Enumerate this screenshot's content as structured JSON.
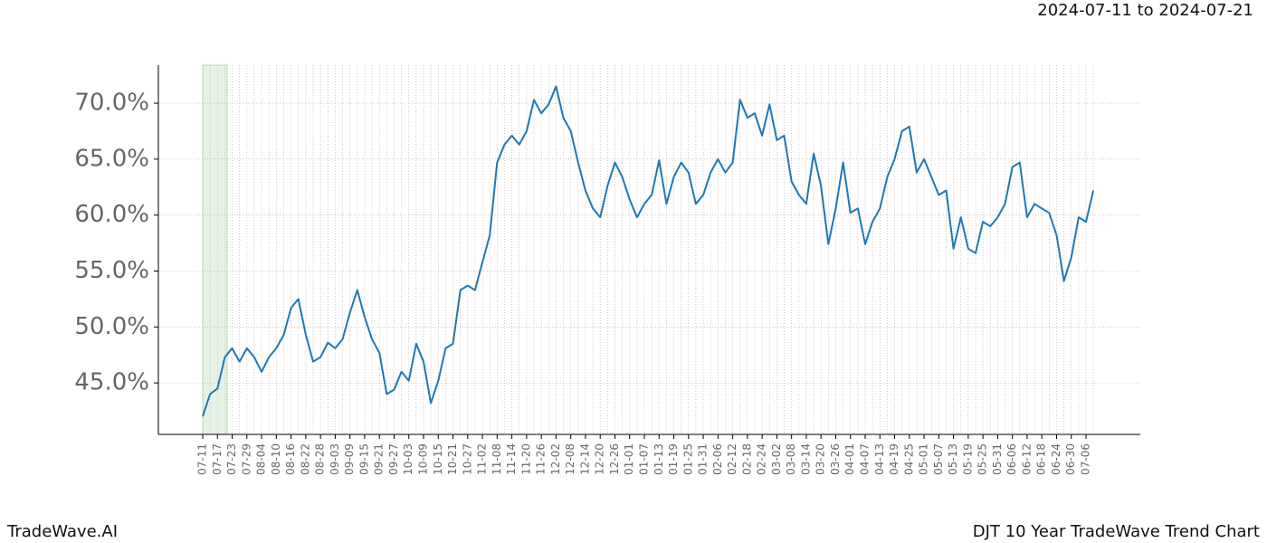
{
  "chart_data": {
    "type": "line",
    "subtitle": "2024-07-11 to 2024-07-21",
    "footer_left": "TradeWave.AI",
    "footer_right": "DJT 10 Year TradeWave Trend Chart",
    "categories": [
      "07-11",
      null,
      "07-17",
      null,
      "07-23",
      null,
      "07-29",
      null,
      "08-04",
      null,
      "08-10",
      null,
      "08-16",
      null,
      "08-22",
      null,
      "08-28",
      null,
      "09-03",
      null,
      "09-09",
      null,
      "09-15",
      null,
      "09-21",
      null,
      "09-27",
      null,
      "10-03",
      null,
      "10-09",
      null,
      "10-15",
      null,
      "10-21",
      null,
      "10-27",
      null,
      "11-02",
      null,
      "11-08",
      null,
      "11-14",
      null,
      "11-20",
      null,
      "11-26",
      null,
      "12-02",
      null,
      "12-08",
      null,
      "12-14",
      null,
      "12-20",
      null,
      "12-26",
      null,
      "01-01",
      null,
      "01-07",
      null,
      "01-13",
      null,
      "01-19",
      null,
      "01-25",
      null,
      "01-31",
      null,
      "02-06",
      null,
      "02-12",
      null,
      "02-18",
      null,
      "02-24",
      null,
      "03-02",
      null,
      "03-08",
      null,
      "03-14",
      null,
      "03-20",
      null,
      "03-26",
      null,
      "04-01",
      null,
      "04-07",
      null,
      "04-13",
      null,
      "04-19",
      null,
      "04-25",
      null,
      "05-01",
      null,
      "05-07",
      null,
      "05-13",
      null,
      "05-19",
      null,
      "05-25",
      null,
      "05-31",
      null,
      "06-06",
      null,
      "06-12",
      null,
      "06-18",
      null,
      "06-24",
      null,
      "06-30",
      null,
      "07-06",
      null
    ],
    "series": [
      {
        "color": "#1f77b4",
        "values": [
          42.0,
          44.0,
          44.5,
          47.3,
          48.1,
          46.9,
          48.1,
          47.3,
          46.0,
          47.3,
          48.1,
          49.3,
          51.7,
          52.5,
          49.3,
          46.9,
          47.3,
          48.6,
          48.1,
          48.9,
          51.3,
          53.3,
          50.9,
          48.9,
          47.7,
          44.0,
          44.4,
          46.0,
          45.2,
          48.5,
          46.9,
          43.2,
          45.2,
          48.1,
          48.5,
          53.3,
          53.7,
          53.3,
          55.8,
          58.2,
          64.7,
          66.3,
          67.1,
          66.3,
          67.5,
          70.3,
          69.1,
          69.9,
          71.5,
          68.7,
          67.5,
          64.7,
          62.2,
          60.6,
          59.8,
          62.6,
          64.7,
          63.4,
          61.4,
          59.8,
          61.0,
          61.8,
          64.9,
          61.0,
          63.4,
          64.7,
          63.8,
          61.0,
          61.8,
          63.8,
          65.0,
          63.8,
          64.7,
          70.3,
          68.7,
          69.1,
          67.1,
          69.9,
          66.7,
          67.1,
          63.0,
          61.8,
          61.0,
          65.5,
          62.6,
          57.4,
          60.6,
          64.7,
          60.2,
          60.6,
          57.4,
          59.4,
          60.6,
          63.4,
          65.0,
          67.5,
          67.9,
          63.8,
          65.0,
          63.4,
          61.8,
          62.2,
          57.0,
          59.8,
          57.0,
          56.6,
          59.4,
          59.0,
          59.8,
          61.0,
          64.3,
          64.7,
          59.8,
          61.0,
          60.6,
          60.2,
          58.2,
          54.1,
          56.2,
          59.8,
          59.4,
          62.2
        ]
      }
    ],
    "ylim": [
      40.4,
      73.4
    ],
    "yticks": [
      {
        "value": 45,
        "label": "45.0%"
      },
      {
        "value": 50,
        "label": "50.0%"
      },
      {
        "value": 55,
        "label": "55.0%"
      },
      {
        "value": 60,
        "label": "60.0%"
      },
      {
        "value": 65,
        "label": "65.0%"
      },
      {
        "value": 70,
        "label": "70.0%"
      }
    ],
    "highlight": [
      0,
      3.33
    ],
    "highlight_color": "#e6f2e6",
    "grid": true
  }
}
